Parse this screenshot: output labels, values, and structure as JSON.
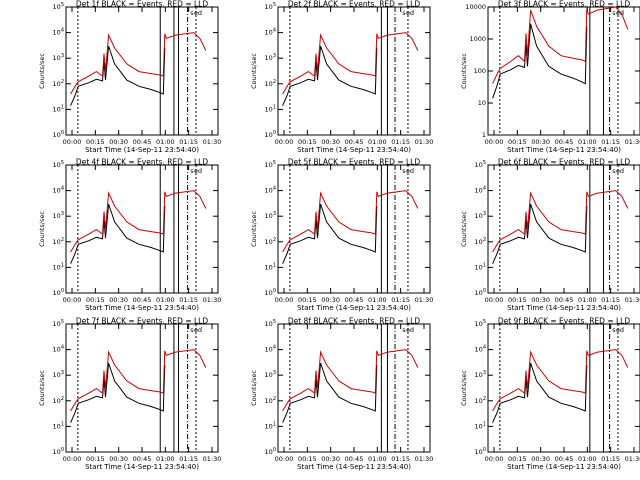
{
  "figure": {
    "xlabel": "Start Time (14-Sep-11 23:54:40)",
    "ylabel": "Counts/sec"
  },
  "chart_data": [
    {
      "type": "line",
      "title": "Det 1f BLACK = Events, RED = LLD",
      "x_ticks": [
        "00:00",
        "00:15",
        "00:30",
        "00:45",
        "01:00",
        "01:15",
        "01:30"
      ],
      "y_ticks": [
        "10^0",
        "10^1",
        "10^2",
        "10^3",
        "10^4",
        "10^5"
      ],
      "ylim": [
        1,
        100000
      ],
      "yscale": "log",
      "series": [
        {
          "name": "Events",
          "color": "#000000",
          "x": [
            0.03,
            0.06,
            0.08,
            0.15,
            0.2,
            0.24,
            0.25,
            0.26,
            0.28,
            0.32,
            0.4,
            0.48,
            0.56,
            0.62,
            0.64,
            0.65
          ],
          "y": [
            14,
            35,
            80,
            110,
            150,
            130,
            700,
            140,
            3000,
            600,
            140,
            80,
            60,
            45,
            40,
            2500
          ]
        },
        {
          "name": "LLD",
          "color": "#cc0000",
          "x": [
            0.03,
            0.06,
            0.08,
            0.15,
            0.2,
            0.24,
            0.25,
            0.26,
            0.28,
            0.32,
            0.4,
            0.48,
            0.56,
            0.62,
            0.64,
            0.65,
            0.66,
            0.72,
            0.84,
            0.88,
            0.92
          ],
          "y": [
            40,
            80,
            120,
            200,
            300,
            200,
            1500,
            300,
            8000,
            2500,
            600,
            300,
            250,
            220,
            200,
            9000,
            6000,
            8000,
            10000,
            6000,
            2000
          ]
        }
      ],
      "markers": [
        "s",
        "e",
        "d"
      ]
    },
    {
      "type": "line",
      "title": "Det 2f BLACK = Events, RED = LLD",
      "x_ticks": [
        "00:00",
        "00:15",
        "00:30",
        "00:45",
        "01:00",
        "01:15",
        "01:30"
      ],
      "y_ticks": [
        "10^0",
        "10^1",
        "10^2",
        "10^3",
        "10^4",
        "10^5"
      ],
      "ylim": [
        1,
        100000
      ],
      "yscale": "log",
      "series": [
        {
          "name": "Events",
          "color": "#000000",
          "x": [
            0.03,
            0.06,
            0.08,
            0.15,
            0.2,
            0.24,
            0.25,
            0.26,
            0.28,
            0.32,
            0.4,
            0.48,
            0.56,
            0.62,
            0.64,
            0.65
          ],
          "y": [
            14,
            35,
            80,
            110,
            150,
            130,
            700,
            140,
            3000,
            600,
            140,
            80,
            60,
            45,
            40,
            2500
          ]
        },
        {
          "name": "LLD",
          "color": "#cc0000",
          "x": [
            0.03,
            0.06,
            0.08,
            0.15,
            0.2,
            0.24,
            0.25,
            0.26,
            0.28,
            0.32,
            0.4,
            0.48,
            0.56,
            0.62,
            0.64,
            0.65,
            0.66,
            0.72,
            0.84,
            0.88,
            0.92
          ],
          "y": [
            40,
            80,
            120,
            200,
            300,
            200,
            1500,
            300,
            8000,
            2500,
            600,
            300,
            250,
            220,
            200,
            9000,
            6000,
            8000,
            10000,
            6000,
            2000
          ]
        }
      ],
      "markers": [
        "s",
        "e",
        "d"
      ]
    },
    {
      "type": "line",
      "title": "Det 3f BLACK = Events, RED = LLD",
      "x_ticks": [
        "00:00",
        "00:15",
        "00:30",
        "00:45",
        "01:00",
        "01:15",
        "01:30"
      ],
      "y_ticks": [
        "1",
        "10",
        "100",
        "1000",
        "10000"
      ],
      "ylim": [
        1,
        10000
      ],
      "yscale": "log",
      "series": [
        {
          "name": "Events",
          "color": "#000000",
          "x": [
            0.03,
            0.06,
            0.08,
            0.15,
            0.2,
            0.24,
            0.25,
            0.26,
            0.28,
            0.32,
            0.4,
            0.48,
            0.56,
            0.62,
            0.64,
            0.65
          ],
          "y": [
            14,
            35,
            80,
            110,
            150,
            130,
            700,
            140,
            3000,
            600,
            140,
            80,
            60,
            45,
            40,
            2500
          ]
        },
        {
          "name": "LLD",
          "color": "#cc0000",
          "x": [
            0.03,
            0.06,
            0.08,
            0.15,
            0.2,
            0.24,
            0.25,
            0.26,
            0.28,
            0.32,
            0.4,
            0.48,
            0.56,
            0.62,
            0.64,
            0.65,
            0.66,
            0.72,
            0.84,
            0.88,
            0.92
          ],
          "y": [
            40,
            80,
            120,
            200,
            300,
            200,
            1500,
            300,
            8000,
            2500,
            600,
            300,
            250,
            220,
            200,
            9000,
            6000,
            8000,
            10000,
            6000,
            2000
          ]
        }
      ],
      "markers": [
        "s",
        "e",
        "d"
      ]
    },
    {
      "type": "line",
      "title": "Det 4f BLACK = Events, RED = LLD",
      "x_ticks": [
        "00:00",
        "00:15",
        "00:30",
        "00:45",
        "01:00",
        "01:15",
        "01:30"
      ],
      "y_ticks": [
        "10^0",
        "10^1",
        "10^2",
        "10^3",
        "10^4",
        "10^5"
      ],
      "ylim": [
        1,
        100000
      ],
      "yscale": "log",
      "series": [
        {
          "name": "Events",
          "color": "#000000",
          "x": [
            0.03,
            0.06,
            0.08,
            0.15,
            0.2,
            0.24,
            0.25,
            0.26,
            0.28,
            0.32,
            0.4,
            0.48,
            0.56,
            0.62,
            0.64,
            0.65
          ],
          "y": [
            14,
            35,
            80,
            110,
            150,
            130,
            700,
            140,
            3000,
            600,
            140,
            80,
            60,
            45,
            40,
            2500
          ]
        },
        {
          "name": "LLD",
          "color": "#cc0000",
          "x": [
            0.03,
            0.06,
            0.08,
            0.15,
            0.2,
            0.24,
            0.25,
            0.26,
            0.28,
            0.32,
            0.4,
            0.48,
            0.56,
            0.62,
            0.64,
            0.65,
            0.66,
            0.72,
            0.84,
            0.88,
            0.92
          ],
          "y": [
            40,
            80,
            120,
            200,
            300,
            200,
            1500,
            300,
            8000,
            2500,
            600,
            300,
            250,
            220,
            200,
            9000,
            6000,
            8000,
            10000,
            6000,
            2000
          ]
        }
      ],
      "markers": [
        "s",
        "e",
        "d"
      ]
    },
    {
      "type": "line",
      "title": "Det 5f BLACK = Events, RED = LLD",
      "x_ticks": [
        "00:00",
        "00:15",
        "00:30",
        "00:45",
        "01:00",
        "01:15",
        "01:30"
      ],
      "y_ticks": [
        "10^0",
        "10^1",
        "10^2",
        "10^3",
        "10^4",
        "10^5"
      ],
      "ylim": [
        1,
        100000
      ],
      "yscale": "log",
      "series": [
        {
          "name": "Events",
          "color": "#000000",
          "x": [
            0.03,
            0.06,
            0.08,
            0.15,
            0.2,
            0.24,
            0.25,
            0.26,
            0.28,
            0.32,
            0.4,
            0.48,
            0.56,
            0.62,
            0.64,
            0.65
          ],
          "y": [
            14,
            35,
            80,
            110,
            150,
            130,
            700,
            140,
            3000,
            600,
            140,
            80,
            60,
            45,
            40,
            2500
          ]
        },
        {
          "name": "LLD",
          "color": "#cc0000",
          "x": [
            0.03,
            0.06,
            0.08,
            0.15,
            0.2,
            0.24,
            0.25,
            0.26,
            0.28,
            0.32,
            0.4,
            0.48,
            0.56,
            0.62,
            0.64,
            0.65,
            0.66,
            0.72,
            0.84,
            0.88,
            0.92
          ],
          "y": [
            40,
            80,
            120,
            200,
            300,
            200,
            1500,
            300,
            8000,
            2500,
            600,
            300,
            250,
            220,
            200,
            9000,
            6000,
            8000,
            10000,
            6000,
            2000
          ]
        }
      ],
      "markers": [
        "s",
        "e",
        "d"
      ]
    },
    {
      "type": "line",
      "title": "Det 6f BLACK = Events, RED = LLD",
      "x_ticks": [
        "00:00",
        "00:15",
        "00:30",
        "00:45",
        "01:00",
        "01:15",
        "01:30"
      ],
      "y_ticks": [
        "10^0",
        "10^1",
        "10^2",
        "10^3",
        "10^4",
        "10^5"
      ],
      "ylim": [
        1,
        100000
      ],
      "yscale": "log",
      "series": [
        {
          "name": "Events",
          "color": "#000000",
          "x": [
            0.03,
            0.06,
            0.08,
            0.15,
            0.2,
            0.24,
            0.25,
            0.26,
            0.28,
            0.32,
            0.4,
            0.48,
            0.56,
            0.62,
            0.64,
            0.65
          ],
          "y": [
            14,
            35,
            80,
            110,
            150,
            130,
            700,
            140,
            3000,
            600,
            140,
            80,
            60,
            45,
            40,
            2500
          ]
        },
        {
          "name": "LLD",
          "color": "#cc0000",
          "x": [
            0.03,
            0.06,
            0.08,
            0.15,
            0.2,
            0.24,
            0.25,
            0.26,
            0.28,
            0.32,
            0.4,
            0.48,
            0.56,
            0.62,
            0.64,
            0.65,
            0.66,
            0.72,
            0.84,
            0.88,
            0.92
          ],
          "y": [
            40,
            80,
            120,
            200,
            300,
            200,
            1500,
            300,
            8000,
            2500,
            600,
            300,
            250,
            220,
            200,
            9000,
            6000,
            8000,
            10000,
            6000,
            2000
          ]
        }
      ],
      "markers": [
        "s",
        "e",
        "d"
      ]
    },
    {
      "type": "line",
      "title": "Det 7f BLACK = Events, RED = LLD",
      "x_ticks": [
        "00:00",
        "00:15",
        "00:30",
        "00:45",
        "01:00",
        "01:15",
        "01:30"
      ],
      "y_ticks": [
        "10^0",
        "10^1",
        "10^2",
        "10^3",
        "10^4",
        "10^5"
      ],
      "ylim": [
        1,
        100000
      ],
      "yscale": "log",
      "series": [
        {
          "name": "Events",
          "color": "#000000",
          "x": [
            0.03,
            0.06,
            0.08,
            0.15,
            0.2,
            0.24,
            0.25,
            0.26,
            0.28,
            0.32,
            0.4,
            0.48,
            0.56,
            0.62,
            0.64,
            0.65
          ],
          "y": [
            14,
            35,
            80,
            110,
            150,
            130,
            700,
            140,
            3000,
            600,
            140,
            80,
            60,
            45,
            40,
            2500
          ]
        },
        {
          "name": "LLD",
          "color": "#cc0000",
          "x": [
            0.03,
            0.06,
            0.08,
            0.15,
            0.2,
            0.24,
            0.25,
            0.26,
            0.28,
            0.32,
            0.4,
            0.48,
            0.56,
            0.62,
            0.64,
            0.65,
            0.66,
            0.72,
            0.84,
            0.88,
            0.92
          ],
          "y": [
            40,
            80,
            120,
            200,
            300,
            200,
            1500,
            300,
            8000,
            2500,
            600,
            300,
            250,
            220,
            200,
            9000,
            6000,
            8000,
            10000,
            6000,
            2000
          ]
        }
      ],
      "markers": [
        "s",
        "e",
        "d"
      ]
    },
    {
      "type": "line",
      "title": "Det 8f BLACK = Events, RED = LLD",
      "x_ticks": [
        "00:00",
        "00:15",
        "00:30",
        "00:45",
        "01:00",
        "01:15",
        "01:30"
      ],
      "y_ticks": [
        "10^0",
        "10^1",
        "10^2",
        "10^3",
        "10^4",
        "10^5"
      ],
      "ylim": [
        1,
        100000
      ],
      "yscale": "log",
      "series": [
        {
          "name": "Events",
          "color": "#000000",
          "x": [
            0.03,
            0.06,
            0.08,
            0.15,
            0.2,
            0.24,
            0.25,
            0.26,
            0.28,
            0.32,
            0.4,
            0.48,
            0.56,
            0.62,
            0.64,
            0.65
          ],
          "y": [
            14,
            35,
            80,
            110,
            150,
            130,
            700,
            140,
            3000,
            600,
            140,
            80,
            60,
            45,
            40,
            2500
          ]
        },
        {
          "name": "LLD",
          "color": "#cc0000",
          "x": [
            0.03,
            0.06,
            0.08,
            0.15,
            0.2,
            0.24,
            0.25,
            0.26,
            0.28,
            0.32,
            0.4,
            0.48,
            0.56,
            0.62,
            0.64,
            0.65,
            0.66,
            0.72,
            0.84,
            0.88,
            0.92
          ],
          "y": [
            40,
            80,
            120,
            200,
            300,
            200,
            1500,
            300,
            8000,
            2500,
            600,
            300,
            250,
            220,
            200,
            9000,
            6000,
            8000,
            10000,
            6000,
            2000
          ]
        }
      ],
      "markers": [
        "s",
        "e",
        "d"
      ]
    },
    {
      "type": "line",
      "title": "Det 9f BLACK = Events, RED = LLD",
      "x_ticks": [
        "00:00",
        "00:15",
        "00:30",
        "00:45",
        "01:00",
        "01:15",
        "01:30"
      ],
      "y_ticks": [
        "10^0",
        "10^1",
        "10^2",
        "10^3",
        "10^4",
        "10^5"
      ],
      "ylim": [
        1,
        100000
      ],
      "yscale": "log",
      "series": [
        {
          "name": "Events",
          "color": "#000000",
          "x": [
            0.03,
            0.06,
            0.08,
            0.15,
            0.2,
            0.24,
            0.25,
            0.26,
            0.28,
            0.32,
            0.4,
            0.48,
            0.56,
            0.62,
            0.64,
            0.65
          ],
          "y": [
            14,
            35,
            80,
            110,
            150,
            130,
            700,
            140,
            3000,
            600,
            140,
            80,
            60,
            45,
            40,
            2500
          ]
        },
        {
          "name": "LLD",
          "color": "#cc0000",
          "x": [
            0.03,
            0.06,
            0.08,
            0.15,
            0.2,
            0.24,
            0.25,
            0.26,
            0.28,
            0.32,
            0.4,
            0.48,
            0.56,
            0.62,
            0.64,
            0.65,
            0.66,
            0.72,
            0.84,
            0.88,
            0.92
          ],
          "y": [
            40,
            80,
            120,
            200,
            300,
            200,
            1500,
            300,
            8000,
            2500,
            600,
            300,
            250,
            220,
            200,
            9000,
            6000,
            8000,
            10000,
            6000,
            2000
          ]
        }
      ],
      "markers": [
        "s",
        "e",
        "d"
      ]
    }
  ]
}
